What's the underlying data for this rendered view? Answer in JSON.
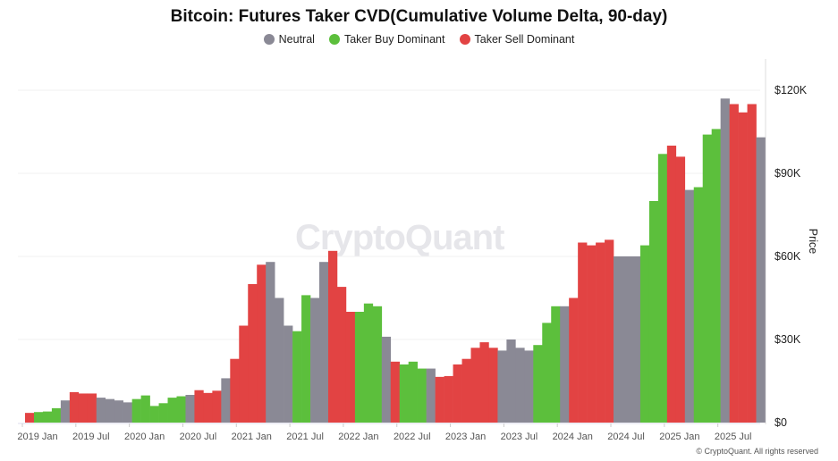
{
  "chart_data": {
    "type": "bar",
    "title": "Bitcoin: Futures Taker CVD(Cumulative Volume Delta, 90-day)",
    "ylabel": "Price",
    "ylim": [
      0,
      130000
    ],
    "yticks": [
      0,
      30000,
      60000,
      90000,
      120000
    ],
    "ytick_labels": [
      "$0",
      "$30K",
      "$60K",
      "$90K",
      "$120K"
    ],
    "xtick_labels": [
      "2019 Jan",
      "2019 Jul",
      "2020 Jan",
      "2020 Jul",
      "2021 Jan",
      "2021 Jul",
      "2022 Jan",
      "2022 Jul",
      "2023 Jan",
      "2023 Jul",
      "2024 Jan",
      "2024 Jul",
      "2025 Jan",
      "2025 Jul"
    ],
    "grid": true,
    "legend_placement": "top",
    "legend": [
      {
        "key": "N",
        "label": "Neutral",
        "color": "#8a8995"
      },
      {
        "key": "B",
        "label": "Taker Buy Dominant",
        "color": "#5cbf3c"
      },
      {
        "key": "S",
        "label": "Taker Sell Dominant",
        "color": "#e24343"
      }
    ],
    "x": [
      "2019-01",
      "2019-02",
      "2019-03",
      "2019-04",
      "2019-05",
      "2019-06",
      "2019-07",
      "2019-08",
      "2019-09",
      "2019-10",
      "2019-11",
      "2019-12",
      "2020-01",
      "2020-02",
      "2020-03",
      "2020-04",
      "2020-05",
      "2020-06",
      "2020-07",
      "2020-08",
      "2020-09",
      "2020-10",
      "2020-11",
      "2020-12",
      "2021-01",
      "2021-02",
      "2021-03",
      "2021-04",
      "2021-05",
      "2021-06",
      "2021-07",
      "2021-08",
      "2021-09",
      "2021-10",
      "2021-11",
      "2021-12",
      "2022-01",
      "2022-02",
      "2022-03",
      "2022-04",
      "2022-05",
      "2022-06",
      "2022-07",
      "2022-08",
      "2022-09",
      "2022-10",
      "2022-11",
      "2022-12",
      "2023-01",
      "2023-02",
      "2023-03",
      "2023-04",
      "2023-05",
      "2023-06",
      "2023-07",
      "2023-08",
      "2023-09",
      "2023-10",
      "2023-11",
      "2023-12",
      "2024-01",
      "2024-02",
      "2024-03",
      "2024-04",
      "2024-05",
      "2024-06",
      "2024-07",
      "2024-08",
      "2024-09",
      "2024-10",
      "2024-11",
      "2024-12",
      "2025-01",
      "2025-02",
      "2025-03",
      "2025-04",
      "2025-05",
      "2025-06",
      "2025-07",
      "2025-08",
      "2025-09",
      "2025-10",
      "2025-11"
    ],
    "values": [
      3500,
      3800,
      4000,
      5200,
      8000,
      11000,
      10500,
      10500,
      9000,
      8500,
      8000,
      7300,
      8500,
      9800,
      6000,
      7000,
      9000,
      9500,
      10000,
      11700,
      10700,
      11500,
      16000,
      23000,
      35000,
      50000,
      57000,
      58000,
      45000,
      35000,
      33000,
      46000,
      45000,
      58000,
      62000,
      49000,
      40000,
      40000,
      43000,
      42000,
      31000,
      22000,
      21000,
      22000,
      19500,
      19500,
      16500,
      16800,
      21000,
      23000,
      27000,
      29000,
      27000,
      26000,
      30000,
      27000,
      26000,
      28000,
      36000,
      42000,
      42000,
      45000,
      65000,
      64000,
      65000,
      66000,
      60000,
      60000,
      60000,
      64000,
      80000,
      97000,
      100000,
      96000,
      84000,
      85000,
      104000,
      106000,
      117000,
      115000,
      112000,
      115000,
      103000
    ],
    "states": [
      "S",
      "B",
      "B",
      "B",
      "N",
      "S",
      "S",
      "S",
      "N",
      "N",
      "N",
      "N",
      "B",
      "B",
      "B",
      "B",
      "B",
      "B",
      "N",
      "S",
      "S",
      "S",
      "N",
      "S",
      "S",
      "S",
      "S",
      "N",
      "N",
      "N",
      "B",
      "B",
      "N",
      "N",
      "S",
      "S",
      "S",
      "B",
      "B",
      "B",
      "N",
      "S",
      "B",
      "B",
      "B",
      "N",
      "S",
      "S",
      "S",
      "S",
      "S",
      "S",
      "S",
      "N",
      "N",
      "N",
      "N",
      "B",
      "B",
      "B",
      "N",
      "S",
      "S",
      "S",
      "S",
      "S",
      "N",
      "N",
      "N",
      "B",
      "B",
      "B",
      "S",
      "S",
      "N",
      "B",
      "B",
      "B",
      "N",
      "S",
      "S",
      "S",
      "N"
    ]
  },
  "watermark": "CryptoQuant",
  "footer": "© CryptoQuant. All rights reserved"
}
